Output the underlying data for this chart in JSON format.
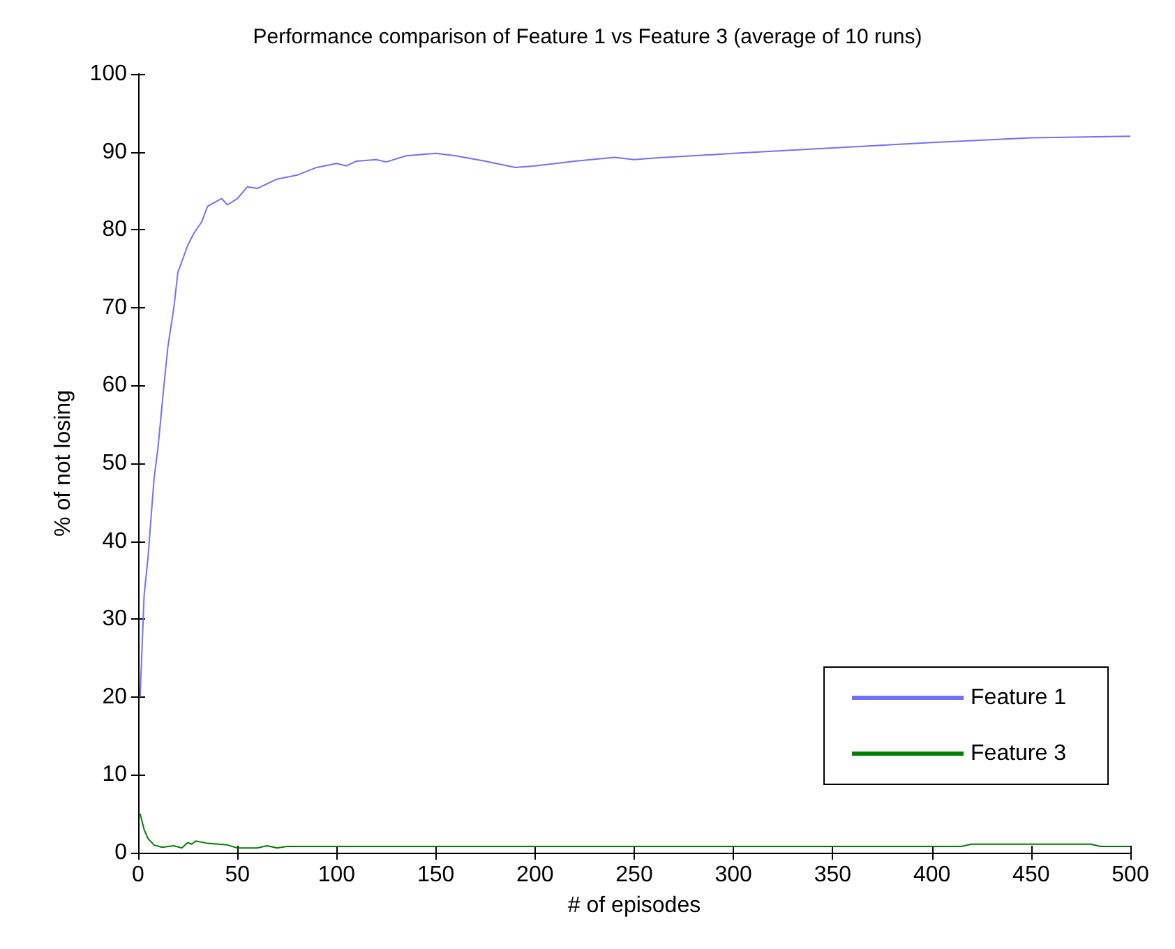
{
  "chart_data": {
    "type": "line",
    "title": "Performance comparison of Feature 1 vs Feature 3 (average of 10 runs)",
    "xlabel": "# of episodes",
    "ylabel": "% of not losing",
    "xlim": [
      0,
      500
    ],
    "ylim": [
      0,
      100
    ],
    "xticks": [
      0,
      50,
      100,
      150,
      200,
      250,
      300,
      350,
      400,
      450,
      500
    ],
    "yticks": [
      0,
      10,
      20,
      30,
      40,
      50,
      60,
      70,
      80,
      90,
      100
    ],
    "grid": false,
    "legend": "bottom right",
    "marker": "none",
    "line_style": "solid",
    "series": [
      {
        "name": "Feature 1",
        "color": "#7070ff",
        "x": [
          1,
          3,
          5,
          8,
          10,
          13,
          15,
          18,
          20,
          25,
          28,
          32,
          35,
          42,
          45,
          50,
          55,
          60,
          70,
          80,
          90,
          100,
          105,
          110,
          120,
          125,
          135,
          150,
          160,
          175,
          190,
          200,
          220,
          240,
          250,
          260,
          300,
          350,
          400,
          450,
          500
        ],
        "values": [
          20,
          33,
          38,
          48,
          52,
          60,
          65,
          70,
          74.5,
          78,
          79.5,
          81,
          83,
          84,
          83.2,
          84,
          85.5,
          85.3,
          86.5,
          87,
          88,
          88.5,
          88.2,
          88.8,
          89,
          88.7,
          89.5,
          89.8,
          89.5,
          88.8,
          88,
          88.2,
          88.8,
          89.3,
          89,
          89.2,
          89.8,
          90.5,
          91.2,
          91.8,
          92
        ]
      },
      {
        "name": "Feature 3",
        "color": "#008000",
        "x": [
          1,
          3,
          5,
          8,
          12,
          18,
          22,
          25,
          27,
          29,
          35,
          45,
          50,
          60,
          65,
          70,
          75,
          100,
          125,
          150,
          200,
          250,
          300,
          350,
          415,
          420,
          480,
          485,
          500
        ],
        "values": [
          5,
          3,
          1.8,
          1,
          0.7,
          0.9,
          0.6,
          1.3,
          1.1,
          1.5,
          1.2,
          1,
          0.6,
          0.6,
          0.9,
          0.6,
          0.8,
          0.8,
          0.8,
          0.8,
          0.8,
          0.8,
          0.8,
          0.8,
          0.8,
          1.1,
          1.1,
          0.8,
          0.8
        ]
      }
    ]
  }
}
